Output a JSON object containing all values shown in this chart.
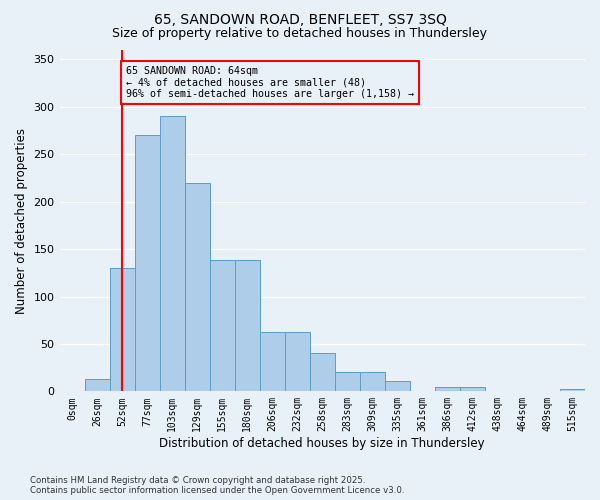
{
  "title1": "65, SANDOWN ROAD, BENFLEET, SS7 3SQ",
  "title2": "Size of property relative to detached houses in Thundersley",
  "xlabel": "Distribution of detached houses by size in Thundersley",
  "ylabel": "Number of detached properties",
  "bin_labels": [
    "0sqm",
    "26sqm",
    "52sqm",
    "77sqm",
    "103sqm",
    "129sqm",
    "155sqm",
    "180sqm",
    "206sqm",
    "232sqm",
    "258sqm",
    "283sqm",
    "309sqm",
    "335sqm",
    "361sqm",
    "386sqm",
    "412sqm",
    "438sqm",
    "464sqm",
    "489sqm",
    "515sqm"
  ],
  "bar_values": [
    0,
    13,
    130,
    270,
    290,
    220,
    138,
    138,
    63,
    63,
    40,
    20,
    20,
    11,
    0,
    5,
    5,
    0,
    0,
    0,
    2
  ],
  "bar_color": "#aecde8",
  "bar_edge_color": "#5a9ec8",
  "vline_x": 2,
  "vline_color": "red",
  "annotation_text": "65 SANDOWN ROAD: 64sqm\n← 4% of detached houses are smaller (48)\n96% of semi-detached houses are larger (1,158) →",
  "annotation_box_color": "red",
  "ylim": [
    0,
    360
  ],
  "yticks": [
    0,
    50,
    100,
    150,
    200,
    250,
    300,
    350
  ],
  "background_color": "#e8f0f8",
  "grid_color": "#ffffff",
  "footer": "Contains HM Land Registry data © Crown copyright and database right 2025.\nContains public sector information licensed under the Open Government Licence v3.0."
}
